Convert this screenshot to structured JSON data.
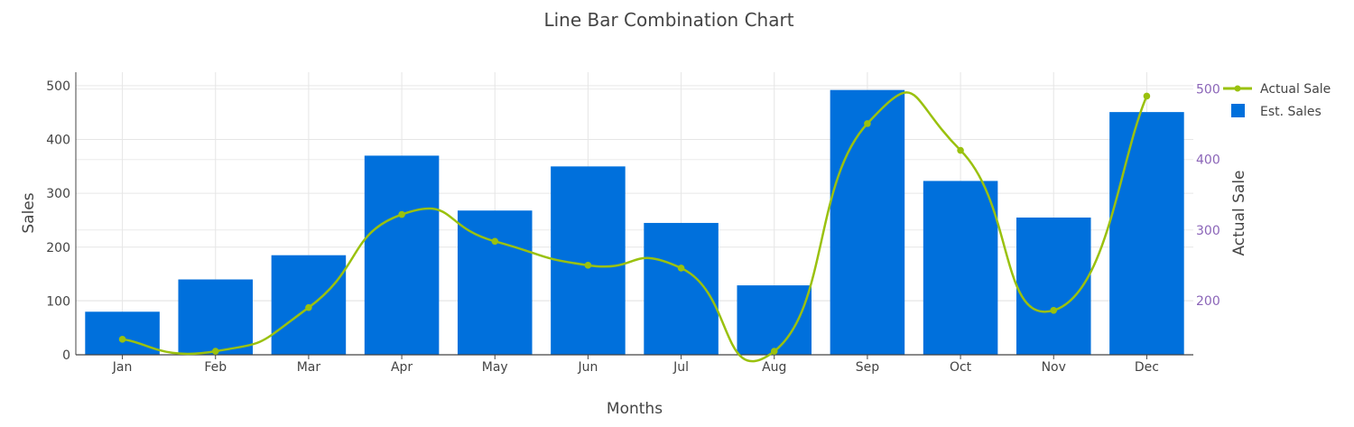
{
  "chart_data": {
    "type": "bar",
    "title": "Line Bar Combination Chart",
    "xlabel": "Months",
    "ylabel": "Sales",
    "y2label": "Actual Sale",
    "categories": [
      "Jan",
      "Feb",
      "Mar",
      "Apr",
      "May",
      "Jun",
      "Jul",
      "Aug",
      "Sep",
      "Oct",
      "Nov",
      "Dec"
    ],
    "ylim": [
      0,
      520
    ],
    "y_ticks": [
      0,
      100,
      200,
      300,
      400,
      500
    ],
    "y2lim": [
      123,
      520
    ],
    "y2_ticks": [
      200,
      300,
      400,
      500
    ],
    "grid": true,
    "legend_position": "top-right",
    "series": [
      {
        "name": "Est. Sales",
        "kind": "bar",
        "axis": "y",
        "color": "#0070dc",
        "values": [
          80,
          140,
          185,
          370,
          268,
          350,
          245,
          129,
          492,
          323,
          255,
          451
        ]
      },
      {
        "name": "Actual Sale",
        "kind": "line",
        "axis": "y2",
        "color": "#9ac10e",
        "values": [
          145,
          128,
          190,
          322,
          284,
          250,
          246,
          128,
          451,
          413,
          186,
          490
        ]
      }
    ],
    "y2_color": "#8b65b8"
  }
}
